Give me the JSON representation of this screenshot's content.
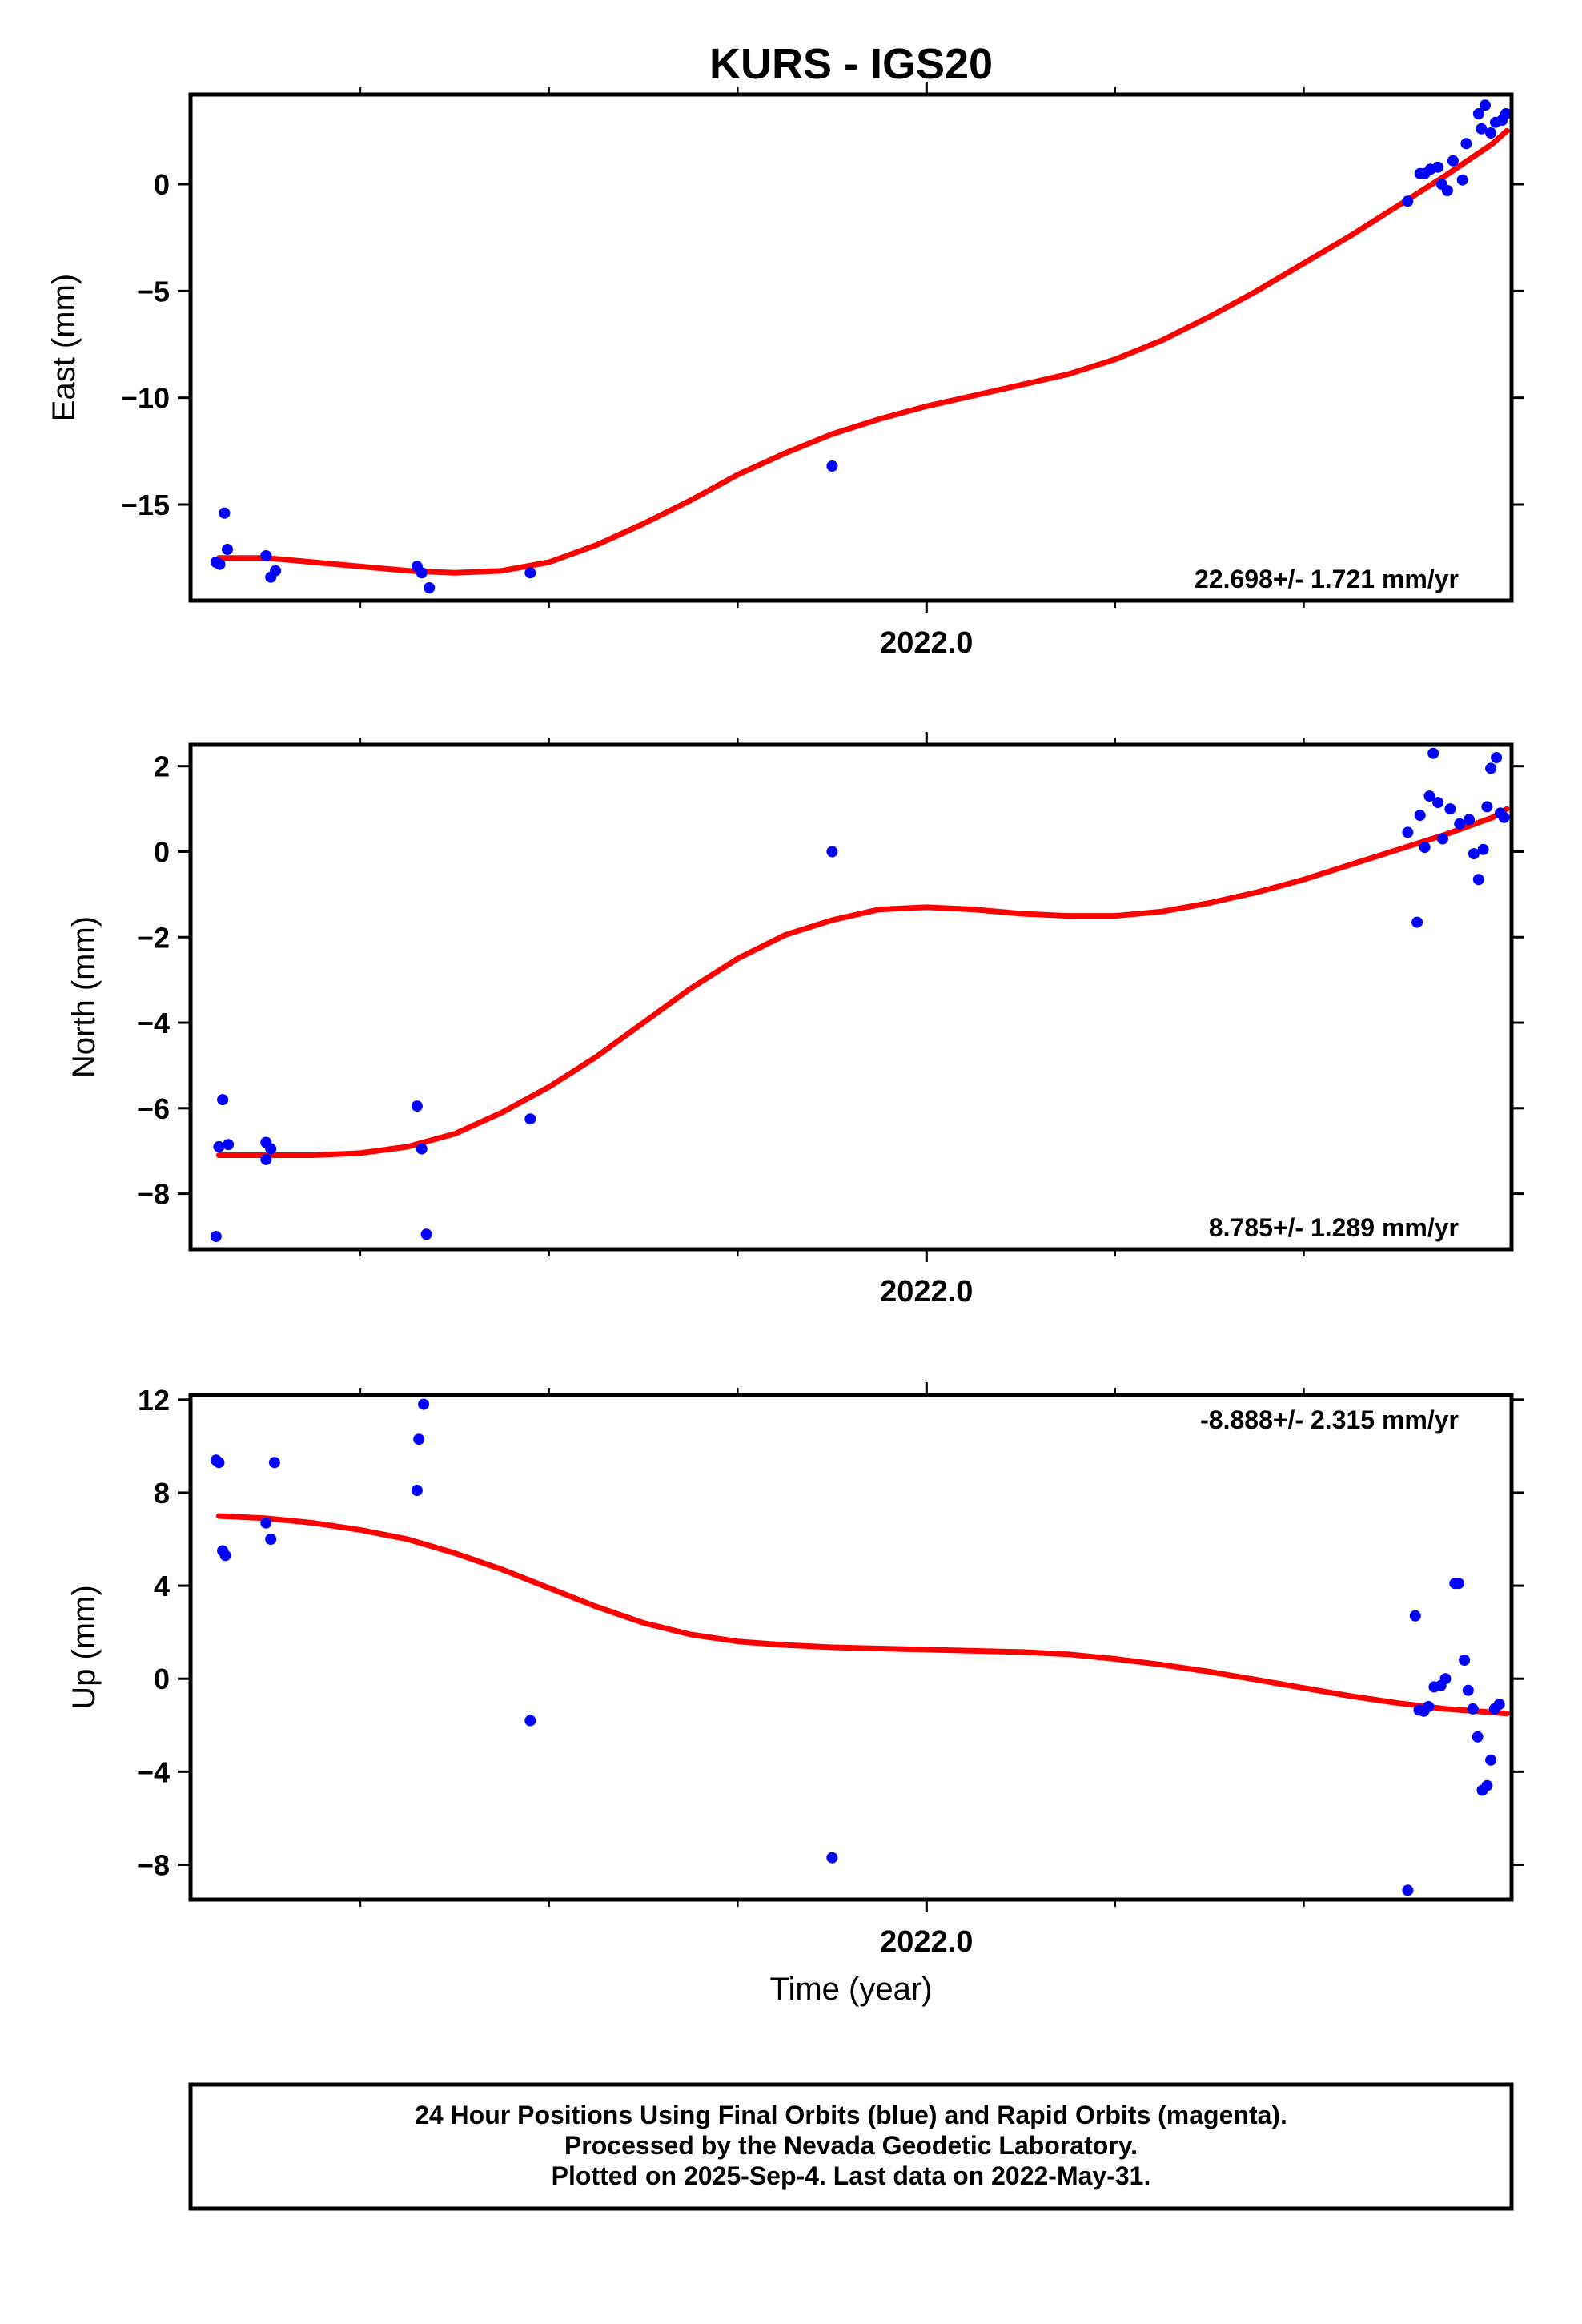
{
  "title": "KURS - IGS20",
  "xlabel": "Time (year)",
  "footer": {
    "line1": "24 Hour Positions Using Final Orbits (blue) and Rapid Orbits (magenta).",
    "line2": "Processed by the Nevada Geodetic Laboratory.",
    "line3": "Plotted on 2025-Sep-4. Last data on 2022-May-31."
  },
  "colors": {
    "points": "#0000ff",
    "fit": "#ff0000",
    "frame": "#000000"
  },
  "chart_data": [
    {
      "type": "scatter",
      "component": "East",
      "ylabel": "East (mm)",
      "rate_label": "22.698+/- 1.721 mm/yr",
      "xlim": [
        2021.22,
        2022.62
      ],
      "ylim": [
        -19.5,
        4.2
      ],
      "yticks": [
        -15,
        -10,
        -5,
        0
      ],
      "xtick_label": "2022.0",
      "xtick_value": 2022.0,
      "series": [
        {
          "kind": "points",
          "x": [
            2021.247,
            2021.251,
            2021.256,
            2021.259,
            2021.3,
            2021.305,
            2021.31,
            2021.46,
            2021.465,
            2021.473,
            2021.58,
            2021.9,
            2022.51,
            2022.523,
            2022.528,
            2022.534,
            2022.542,
            2022.546,
            2022.552,
            2022.558,
            2022.568,
            2022.572,
            2022.585,
            2022.588,
            2022.592,
            2022.598,
            2022.603,
            2022.61,
            2022.614
          ],
          "y": [
            -17.7,
            -17.8,
            -15.4,
            -17.1,
            -17.4,
            -18.4,
            -18.1,
            -17.9,
            -18.2,
            -18.9,
            -18.2,
            -13.2,
            -0.8,
            0.5,
            0.5,
            0.7,
            0.8,
            0.0,
            -0.3,
            1.1,
            0.2,
            1.9,
            3.3,
            2.6,
            3.7,
            2.4,
            2.9,
            3.0,
            3.3
          ]
        },
        {
          "kind": "fit",
          "x": [
            2021.25,
            2021.3,
            2021.35,
            2021.4,
            2021.45,
            2021.5,
            2021.55,
            2021.6,
            2021.65,
            2021.7,
            2021.75,
            2021.8,
            2021.85,
            2021.9,
            2021.95,
            2022.0,
            2022.05,
            2022.1,
            2022.15,
            2022.2,
            2022.25,
            2022.3,
            2022.35,
            2022.4,
            2022.45,
            2022.5,
            2022.55,
            2022.6,
            2022.615
          ],
          "y": [
            -17.5,
            -17.5,
            -17.7,
            -17.9,
            -18.1,
            -18.2,
            -18.1,
            -17.7,
            -16.9,
            -15.9,
            -14.8,
            -13.6,
            -12.6,
            -11.7,
            -11.0,
            -10.4,
            -9.9,
            -9.4,
            -8.9,
            -8.2,
            -7.3,
            -6.2,
            -5.0,
            -3.7,
            -2.4,
            -1.0,
            0.4,
            1.9,
            2.5
          ]
        }
      ]
    },
    {
      "type": "scatter",
      "component": "North",
      "ylabel": "North (mm)",
      "rate_label": "8.785+/- 1.289 mm/yr",
      "xlim": [
        2021.22,
        2022.62
      ],
      "ylim": [
        -9.3,
        2.5
      ],
      "yticks": [
        -8,
        -6,
        -4,
        -2,
        0,
        2
      ],
      "xtick_label": "2022.0",
      "xtick_value": 2022.0,
      "series": [
        {
          "kind": "points",
          "x": [
            2021.247,
            2021.25,
            2021.254,
            2021.26,
            2021.3,
            2021.3,
            2021.305,
            2021.46,
            2021.465,
            2021.47,
            2021.58,
            2021.9,
            2022.51,
            2022.52,
            2022.523,
            2022.528,
            2022.533,
            2022.537,
            2022.542,
            2022.547,
            2022.555,
            2022.565,
            2022.575,
            2022.58,
            2022.585,
            2022.59,
            2022.594,
            2022.598,
            2022.604,
            2022.608,
            2022.612
          ],
          "y": [
            -9.0,
            -6.9,
            -5.8,
            -6.85,
            -7.2,
            -6.8,
            -6.95,
            -5.95,
            -6.95,
            -8.95,
            -6.25,
            0.0,
            0.45,
            -1.65,
            0.85,
            0.1,
            1.3,
            2.3,
            1.15,
            0.3,
            1.0,
            0.65,
            0.75,
            -0.05,
            -0.65,
            0.05,
            1.05,
            1.95,
            2.2,
            0.9,
            0.8
          ]
        },
        {
          "kind": "fit",
          "x": [
            2021.25,
            2021.3,
            2021.35,
            2021.4,
            2021.45,
            2021.5,
            2021.55,
            2021.6,
            2021.65,
            2021.7,
            2021.75,
            2021.8,
            2021.85,
            2021.9,
            2021.95,
            2022.0,
            2022.05,
            2022.1,
            2022.15,
            2022.2,
            2022.25,
            2022.3,
            2022.35,
            2022.4,
            2022.45,
            2022.5,
            2022.55,
            2022.6,
            2022.615
          ],
          "y": [
            -7.1,
            -7.1,
            -7.1,
            -7.05,
            -6.9,
            -6.6,
            -6.1,
            -5.5,
            -4.8,
            -4.0,
            -3.2,
            -2.5,
            -1.95,
            -1.6,
            -1.35,
            -1.3,
            -1.35,
            -1.45,
            -1.5,
            -1.5,
            -1.4,
            -1.2,
            -0.95,
            -0.65,
            -0.3,
            0.05,
            0.4,
            0.8,
            1.0
          ]
        }
      ]
    },
    {
      "type": "scatter",
      "component": "Up",
      "ylabel": "Up (mm)",
      "rate_label": "-8.888+/- 2.315 mm/yr",
      "xlim": [
        2021.22,
        2022.62
      ],
      "ylim": [
        -9.5,
        12.2
      ],
      "yticks": [
        -8,
        -4,
        0,
        4,
        8,
        12
      ],
      "xtick_label": "2022.0",
      "xtick_value": 2022.0,
      "series": [
        {
          "kind": "points",
          "x": [
            2021.247,
            2021.25,
            2021.254,
            2021.257,
            2021.3,
            2021.305,
            2021.309,
            2021.46,
            2021.462,
            2021.467,
            2021.58,
            2021.9,
            2022.51,
            2022.518,
            2022.522,
            2022.527,
            2022.532,
            2022.538,
            2022.545,
            2022.55,
            2022.56,
            2022.564,
            2022.57,
            2022.574,
            2022.579,
            2022.584,
            2022.589,
            2022.594,
            2022.598,
            2022.602,
            2022.607
          ],
          "y": [
            9.4,
            9.3,
            5.5,
            5.3,
            6.7,
            6.0,
            9.3,
            8.1,
            10.3,
            11.8,
            -1.8,
            -7.7,
            -9.1,
            2.7,
            -1.35,
            -1.4,
            -1.2,
            -0.35,
            -0.3,
            0.0,
            4.1,
            4.1,
            0.8,
            -0.5,
            -1.3,
            -2.5,
            -4.8,
            -4.6,
            -3.5,
            -1.3,
            -1.1
          ]
        },
        {
          "kind": "fit",
          "x": [
            2021.25,
            2021.3,
            2021.35,
            2021.4,
            2021.45,
            2021.5,
            2021.55,
            2021.6,
            2021.65,
            2021.7,
            2021.75,
            2021.8,
            2021.85,
            2021.9,
            2021.95,
            2022.0,
            2022.05,
            2022.1,
            2022.15,
            2022.2,
            2022.25,
            2022.3,
            2022.35,
            2022.4,
            2022.45,
            2022.5,
            2022.55,
            2022.6,
            2022.615
          ],
          "y": [
            7.0,
            6.9,
            6.7,
            6.4,
            6.0,
            5.4,
            4.7,
            3.9,
            3.1,
            2.4,
            1.9,
            1.6,
            1.45,
            1.35,
            1.3,
            1.25,
            1.2,
            1.15,
            1.05,
            0.85,
            0.6,
            0.3,
            -0.05,
            -0.4,
            -0.75,
            -1.05,
            -1.3,
            -1.45,
            -1.5
          ]
        }
      ]
    }
  ]
}
